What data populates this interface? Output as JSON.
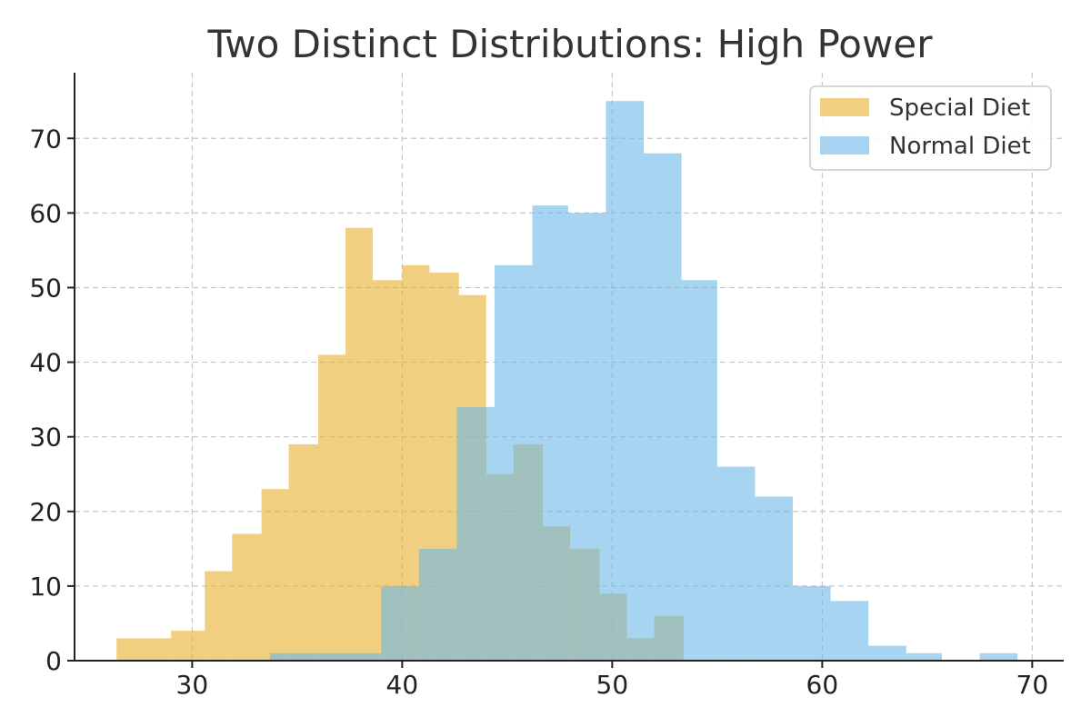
{
  "chart_data": {
    "type": "bar",
    "title": "Two Distinct Distributions: High Power",
    "xlabel": "",
    "ylabel": "",
    "xlim": [
      24.4,
      71.5
    ],
    "ylim": [
      0,
      78.8
    ],
    "x_ticks": [
      30,
      40,
      50,
      60,
      70
    ],
    "y_ticks": [
      0,
      10,
      20,
      30,
      40,
      50,
      60,
      70
    ],
    "grid": true,
    "legend_position": "top-right",
    "series": [
      {
        "name": "Special Diet",
        "color": "#E8AF2C",
        "opacity": 0.6,
        "bins": [
          {
            "x0": 26.4,
            "x1": 29.0,
            "count": 3
          },
          {
            "x0": 29.0,
            "x1": 30.6,
            "count": 4
          },
          {
            "x0": 30.6,
            "x1": 31.9,
            "count": 12
          },
          {
            "x0": 31.9,
            "x1": 33.3,
            "count": 17
          },
          {
            "x0": 33.3,
            "x1": 34.6,
            "count": 23
          },
          {
            "x0": 34.6,
            "x1": 36.0,
            "count": 29
          },
          {
            "x0": 36.0,
            "x1": 37.3,
            "count": 41
          },
          {
            "x0": 37.3,
            "x1": 38.6,
            "count": 58
          },
          {
            "x0": 38.6,
            "x1": 40.0,
            "count": 51
          },
          {
            "x0": 40.0,
            "x1": 41.3,
            "count": 53
          },
          {
            "x0": 41.3,
            "x1": 42.7,
            "count": 52
          },
          {
            "x0": 42.7,
            "x1": 44.0,
            "count": 49
          },
          {
            "x0": 44.0,
            "x1": 45.3,
            "count": 25
          },
          {
            "x0": 45.3,
            "x1": 46.7,
            "count": 29
          },
          {
            "x0": 46.7,
            "x1": 48.0,
            "count": 18
          },
          {
            "x0": 48.0,
            "x1": 49.4,
            "count": 15
          },
          {
            "x0": 49.4,
            "x1": 50.7,
            "count": 9
          },
          {
            "x0": 50.7,
            "x1": 52.0,
            "count": 3
          },
          {
            "x0": 52.0,
            "x1": 53.4,
            "count": 6
          }
        ]
      },
      {
        "name": "Normal Diet",
        "color": "#6CB8E8",
        "opacity": 0.6,
        "bins": [
          {
            "x0": 33.7,
            "x1": 39.0,
            "count": 1
          },
          {
            "x0": 39.0,
            "x1": 40.8,
            "count": 10
          },
          {
            "x0": 40.8,
            "x1": 42.6,
            "count": 15
          },
          {
            "x0": 42.6,
            "x1": 44.4,
            "count": 34
          },
          {
            "x0": 44.4,
            "x1": 46.2,
            "count": 53
          },
          {
            "x0": 46.2,
            "x1": 47.9,
            "count": 61
          },
          {
            "x0": 47.9,
            "x1": 49.7,
            "count": 60
          },
          {
            "x0": 49.7,
            "x1": 51.5,
            "count": 75
          },
          {
            "x0": 51.5,
            "x1": 53.3,
            "count": 68
          },
          {
            "x0": 53.3,
            "x1": 55.0,
            "count": 51
          },
          {
            "x0": 55.0,
            "x1": 56.8,
            "count": 26
          },
          {
            "x0": 56.8,
            "x1": 58.6,
            "count": 22
          },
          {
            "x0": 58.6,
            "x1": 60.4,
            "count": 10
          },
          {
            "x0": 60.4,
            "x1": 62.2,
            "count": 8
          },
          {
            "x0": 62.2,
            "x1": 64.0,
            "count": 2
          },
          {
            "x0": 64.0,
            "x1": 65.7,
            "count": 1
          },
          {
            "x0": 65.7,
            "x1": 67.5,
            "count": 0
          },
          {
            "x0": 67.5,
            "x1": 69.3,
            "count": 1
          }
        ]
      }
    ]
  }
}
